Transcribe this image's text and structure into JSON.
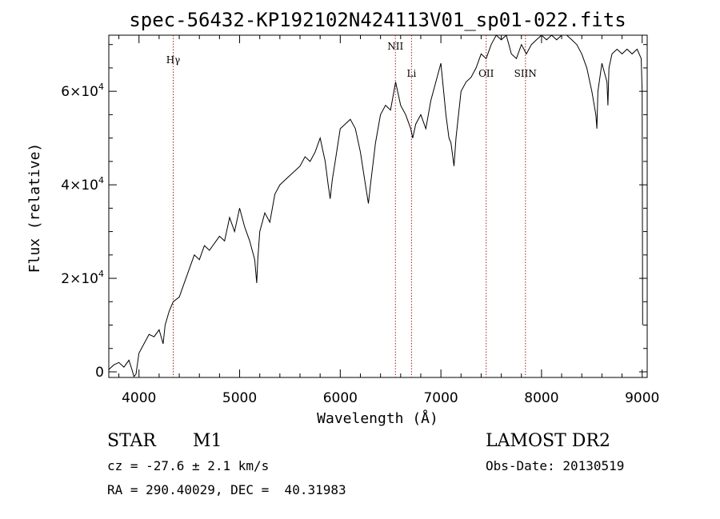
{
  "chart_data": {
    "type": "line",
    "title": "spec-56432-KP192102N424113V01_sp01-022.fits",
    "xlabel": "Wavelength (Å)",
    "ylabel": "Flux (relative)",
    "xlim": [
      3700,
      9050
    ],
    "ylim": [
      -1200,
      72000
    ],
    "x_ticks": [
      4000,
      5000,
      6000,
      7000,
      8000,
      9000
    ],
    "x_tick_labels": [
      "4000",
      "5000",
      "6000",
      "7000",
      "8000",
      "9000"
    ],
    "y_ticks": [
      0,
      20000,
      40000,
      60000
    ],
    "y_tick_labels": [
      {
        "mantissa": "0",
        "exponent": ""
      },
      {
        "mantissa": "2×10",
        "exponent": "4"
      },
      {
        "mantissa": "4×10",
        "exponent": "4"
      },
      {
        "mantissa": "6×10",
        "exponent": "4"
      }
    ],
    "lines": [
      {
        "label": "Hγ",
        "wavelength": 4340
      },
      {
        "label": "NII",
        "wavelength": 6548
      },
      {
        "label": "Li",
        "wavelength": 6708
      },
      {
        "label": "OII",
        "wavelength": 7450
      },
      {
        "label": "SIIN",
        "wavelength": 7840
      }
    ],
    "series": [
      {
        "name": "spectrum",
        "x": [
          3700,
          3750,
          3800,
          3850,
          3900,
          3930,
          3950,
          3970,
          4000,
          4050,
          4100,
          4150,
          4200,
          4240,
          4260,
          4300,
          4340,
          4400,
          4450,
          4500,
          4550,
          4600,
          4650,
          4700,
          4750,
          4800,
          4850,
          4900,
          4950,
          5000,
          5050,
          5100,
          5150,
          5170,
          5180,
          5200,
          5250,
          5300,
          5350,
          5400,
          5450,
          5500,
          5550,
          5600,
          5650,
          5700,
          5750,
          5800,
          5850,
          5880,
          5900,
          5920,
          5950,
          6000,
          6050,
          6100,
          6150,
          6200,
          6250,
          6280,
          6300,
          6350,
          6400,
          6450,
          6500,
          6550,
          6600,
          6650,
          6700,
          6720,
          6750,
          6800,
          6850,
          6900,
          6950,
          7000,
          7050,
          7080,
          7100,
          7130,
          7150,
          7200,
          7250,
          7300,
          7350,
          7400,
          7450,
          7500,
          7550,
          7600,
          7650,
          7700,
          7750,
          7800,
          7850,
          7900,
          7950,
          8000,
          8050,
          8100,
          8150,
          8200,
          8250,
          8300,
          8350,
          8400,
          8450,
          8500,
          8540,
          8550,
          8560,
          8600,
          8650,
          8660,
          8670,
          8700,
          8750,
          8800,
          8850,
          8900,
          8950,
          8990,
          9000,
          9005
        ],
        "y": [
          500,
          1500,
          2000,
          1000,
          2500,
          500,
          -1000,
          -500,
          4000,
          6000,
          8000,
          7500,
          9000,
          6000,
          10000,
          13000,
          15000,
          16000,
          19000,
          22000,
          25000,
          24000,
          27000,
          26000,
          27500,
          29000,
          28000,
          33000,
          30000,
          35000,
          31000,
          28000,
          24000,
          19000,
          24000,
          30000,
          34000,
          32000,
          38000,
          40000,
          41000,
          42000,
          43000,
          44000,
          46000,
          45000,
          47000,
          50000,
          45000,
          40000,
          37000,
          41000,
          45000,
          52000,
          53000,
          54000,
          52000,
          47000,
          40000,
          36000,
          40000,
          49000,
          55000,
          57000,
          56000,
          62000,
          57000,
          55000,
          52000,
          50000,
          53000,
          55000,
          52000,
          58000,
          62000,
          66000,
          55000,
          50000,
          49000,
          44000,
          50000,
          60000,
          62000,
          63000,
          65000,
          68000,
          67000,
          70000,
          72000,
          71000,
          73000,
          68000,
          67000,
          70000,
          68000,
          70000,
          71000,
          72000,
          71000,
          72000,
          71000,
          73000,
          72000,
          71000,
          70000,
          68000,
          65000,
          60000,
          55000,
          52000,
          60000,
          66000,
          62000,
          57000,
          65000,
          68000,
          69000,
          68000,
          69000,
          68000,
          69000,
          67000,
          60000,
          10000
        ]
      }
    ],
    "info": {
      "object_class": "STAR",
      "subclass": "M1",
      "survey": "LAMOST DR2",
      "cz": "cz = -27.6 ± 2.1 km/s",
      "obs_date": "Obs-Date: 20130519",
      "coords": "RA = 290.40029, DEC =  40.31983"
    }
  }
}
